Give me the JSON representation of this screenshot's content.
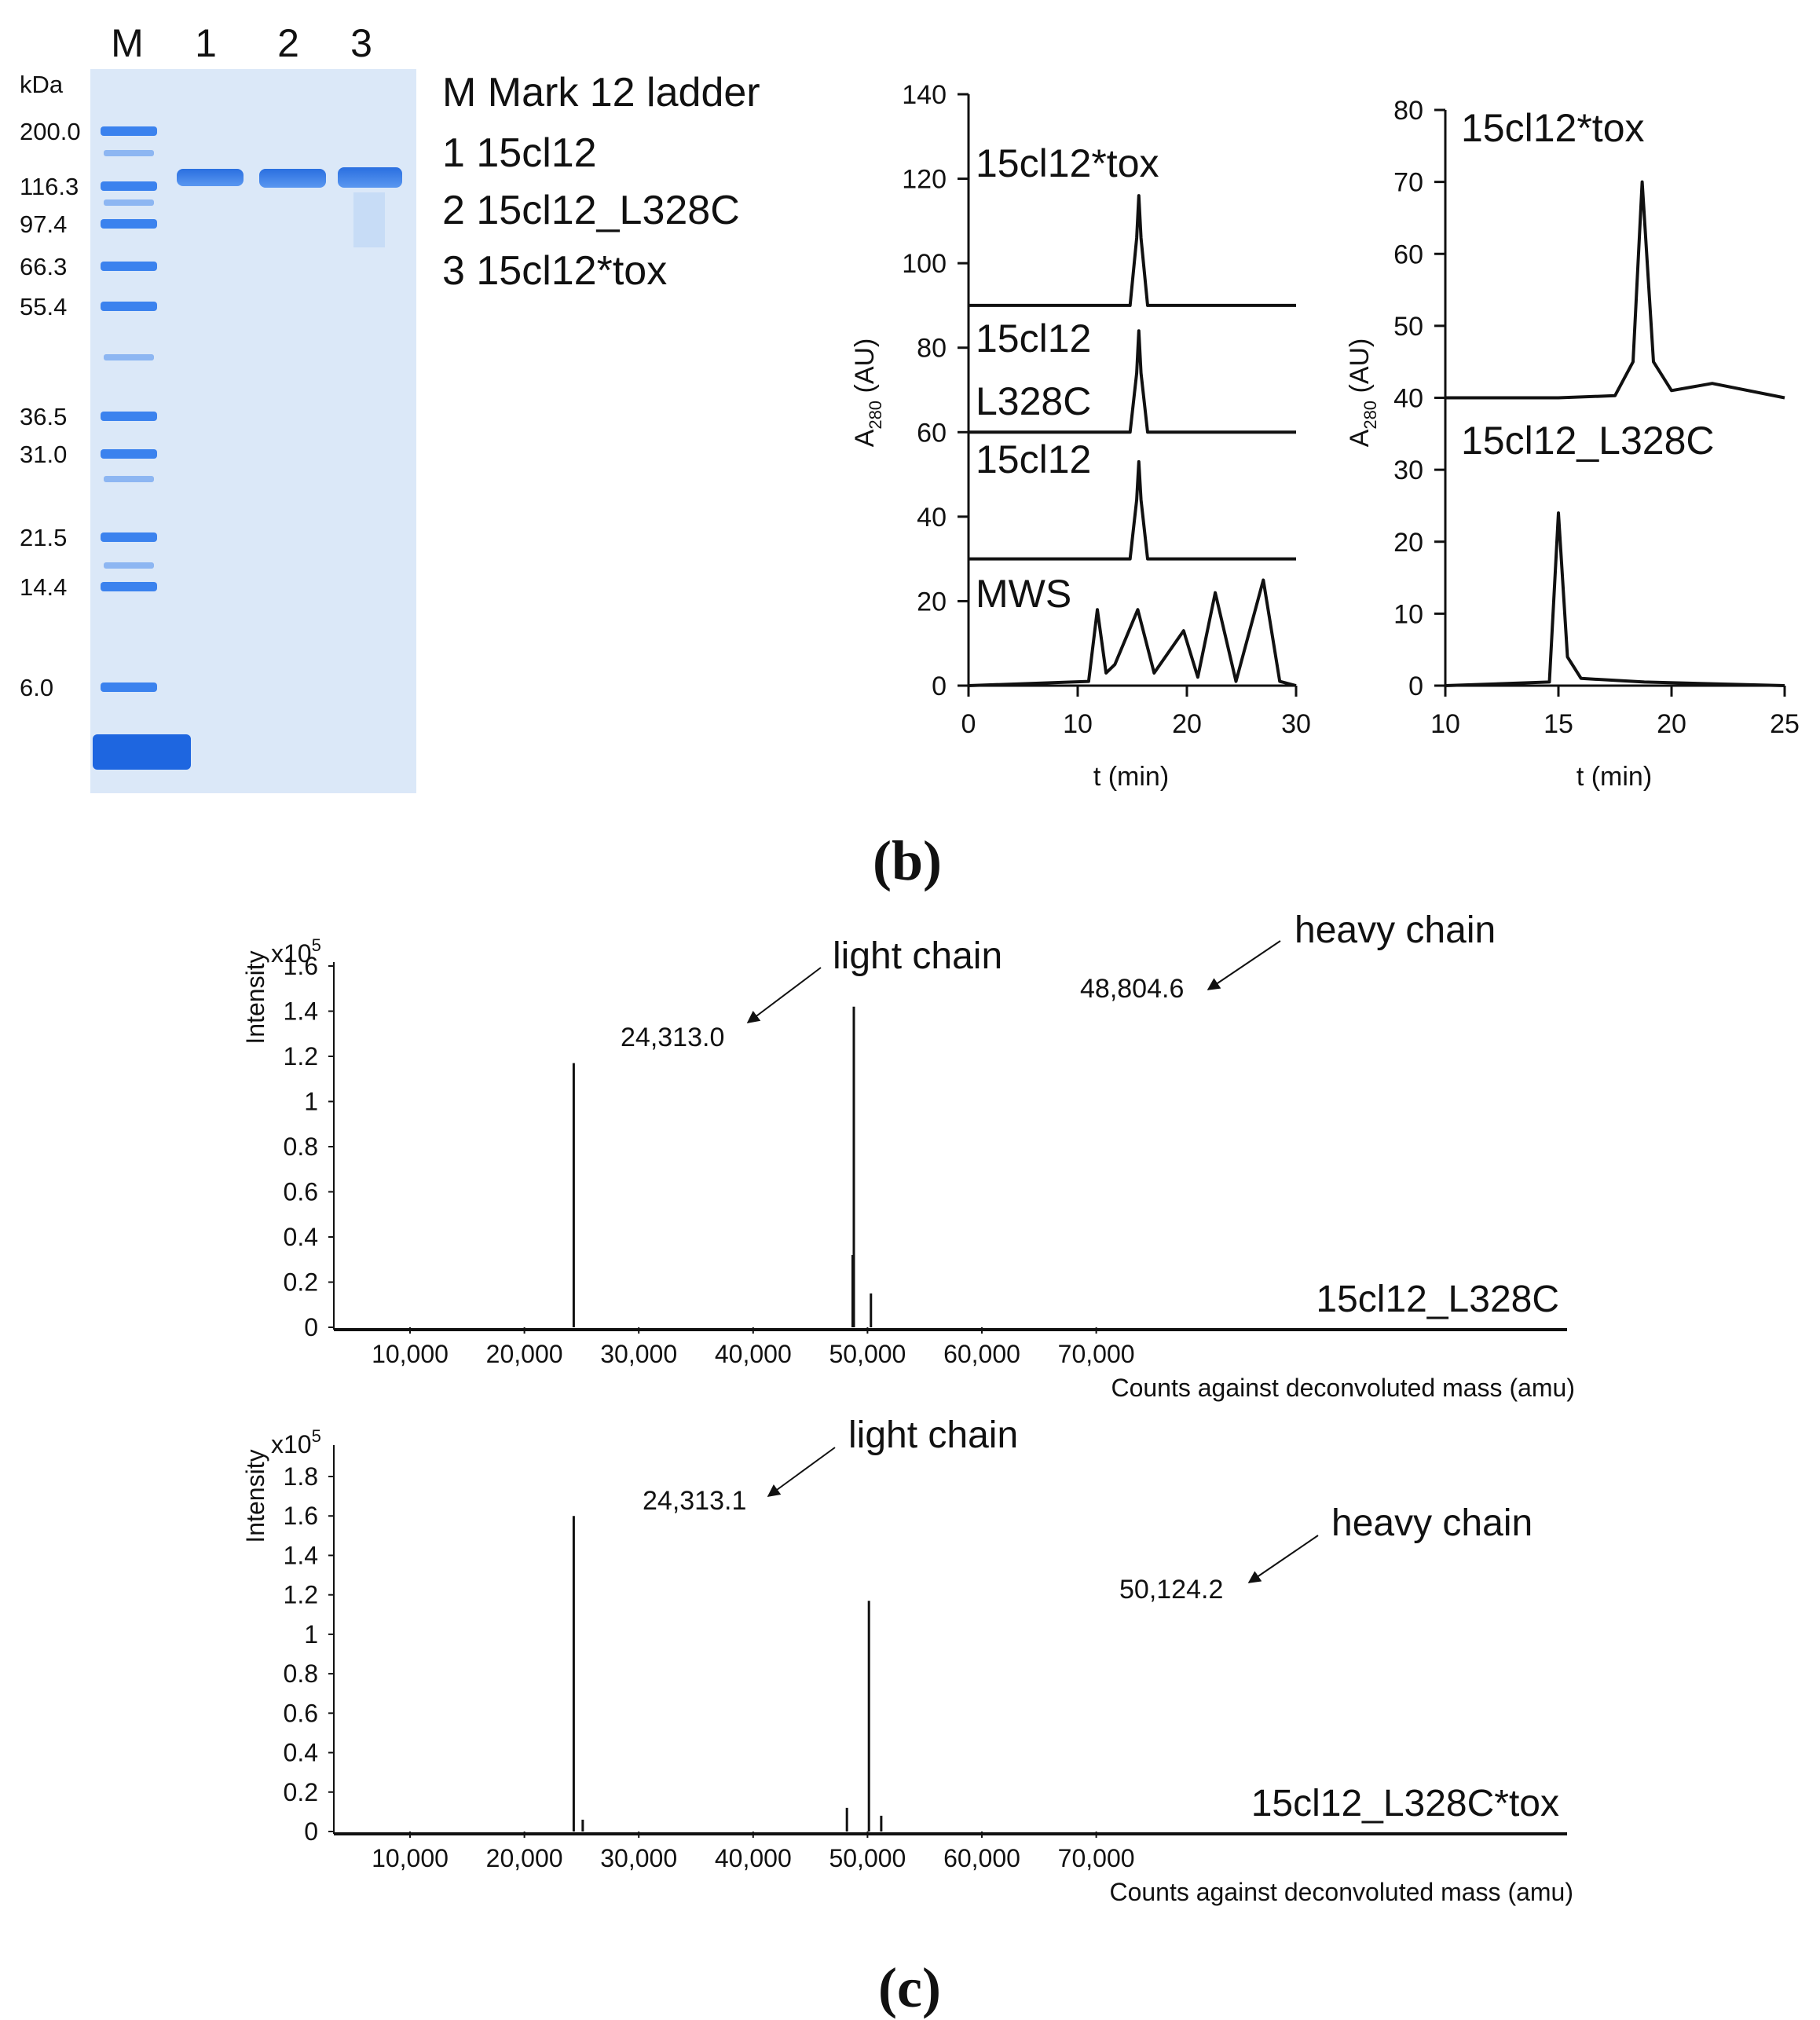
{
  "gel": {
    "lanes": [
      "M",
      "1",
      "2",
      "3"
    ],
    "unit": "kDa",
    "ladder": [
      "200.0",
      "116.3",
      "97.4",
      "66.3",
      "55.4",
      "36.5",
      "31.0",
      "21.5",
      "14.4",
      "6.0"
    ],
    "legend": [
      "M Mark 12 ladder",
      "1 15cl12",
      "2 15cl12_L328C",
      "3 15cl12*tox"
    ]
  },
  "panel_b_label": "(b)",
  "panel_c_label": "(c)",
  "sec_left": {
    "ylabel_main": "A",
    "ylabel_sub": "280",
    "ylabel_unit": " (AU)",
    "xlabel": "t (min)",
    "xticks": [
      "0",
      "10",
      "20",
      "30"
    ],
    "yticks": [
      "0",
      "20",
      "40",
      "60",
      "80",
      "100",
      "120",
      "140"
    ],
    "labels": [
      "15cl12*tox",
      "15cl12",
      "L328C",
      "15cl12",
      "MWS"
    ]
  },
  "sec_right": {
    "ylabel_main": "A",
    "ylabel_sub": "280",
    "ylabel_unit": " (AU)",
    "xlabel": "t (min)",
    "xticks": [
      "10",
      "15",
      "20",
      "25"
    ],
    "yticks": [
      "0",
      "10",
      "20",
      "30",
      "40",
      "50",
      "60",
      "70",
      "80"
    ],
    "labels": [
      "15cl12*tox",
      "15cl12_L328C"
    ]
  },
  "ms_top": {
    "ylabel": "Intensity",
    "scale_base": "x10",
    "scale_exp": "5",
    "yticks": [
      "0",
      "0.2",
      "0.4",
      "0.6",
      "0.8",
      "1",
      "1.2",
      "1.4",
      "1.6"
    ],
    "xticks": [
      "10,000",
      "20,000",
      "30,000",
      "40,000",
      "50,000",
      "60,000",
      "70,000"
    ],
    "xlabel": "Counts against deconvoluted mass (amu)",
    "sample": "15cl12_L328C",
    "light_label": "light chain",
    "heavy_label": "heavy chain",
    "light_mass": "24,313.0",
    "heavy_mass": "48,804.6"
  },
  "ms_bottom": {
    "ylabel": "Intensity",
    "scale_base": "x10",
    "scale_exp": "5",
    "yticks": [
      "0",
      "0.2",
      "0.4",
      "0.6",
      "0.8",
      "1",
      "1.2",
      "1.4",
      "1.6",
      "1.8"
    ],
    "xticks": [
      "10,000",
      "20,000",
      "30,000",
      "40,000",
      "50,000",
      "60,000",
      "70,000"
    ],
    "xlabel": "Counts against deconvoluted mass (amu)",
    "sample": "15cl12_L328C*tox",
    "light_label": "light chain",
    "heavy_label": "heavy chain",
    "light_mass": "24,313.1",
    "heavy_mass": "50,124.2"
  },
  "chart_data": [
    {
      "type": "line",
      "title": "",
      "xlabel": "t (min)",
      "ylabel": "A280 (AU)",
      "xlim": [
        0,
        30
      ],
      "ylim": [
        0,
        140
      ],
      "series": [
        {
          "name": "15cl12*tox",
          "x": [
            0,
            14.8,
            15.4,
            15.6,
            15.8,
            16.4,
            30
          ],
          "y": [
            90,
            90,
            106,
            116,
            106,
            90,
            90
          ]
        },
        {
          "name": "15cl12 L328C",
          "x": [
            0,
            14.8,
            15.4,
            15.6,
            15.8,
            16.4,
            30
          ],
          "y": [
            60,
            60,
            74,
            84,
            74,
            60,
            60
          ]
        },
        {
          "name": "15cl12",
          "x": [
            0,
            14.8,
            15.4,
            15.6,
            15.8,
            16.4,
            30
          ],
          "y": [
            30,
            30,
            44,
            53,
            44,
            30,
            30
          ]
        },
        {
          "name": "MWS",
          "x": [
            0,
            11,
            11.8,
            12.6,
            13.4,
            15.5,
            17,
            19.7,
            21,
            22.6,
            24.5,
            27,
            28.5,
            30
          ],
          "y": [
            0,
            1,
            18,
            3,
            5,
            18,
            3,
            13,
            2,
            22,
            1,
            25,
            1,
            0
          ]
        }
      ]
    },
    {
      "type": "line",
      "title": "",
      "xlabel": "t (min)",
      "ylabel": "A280 (AU)",
      "xlim": [
        10,
        25
      ],
      "ylim": [
        0,
        80
      ],
      "series": [
        {
          "name": "15cl12*tox",
          "x": [
            10,
            15,
            17.5,
            18.3,
            18.7,
            19.2,
            20,
            21.8,
            25
          ],
          "y": [
            40,
            40,
            40.3,
            45,
            70,
            45,
            41,
            42,
            40
          ]
        },
        {
          "name": "15cl12_L328C",
          "x": [
            10,
            14.6,
            15.0,
            15.4,
            16,
            18.8,
            25
          ],
          "y": [
            0,
            0.5,
            24,
            4,
            1,
            0.5,
            0
          ]
        }
      ]
    },
    {
      "type": "bar",
      "title": "",
      "xlabel": "Counts against deconvoluted mass (amu)",
      "ylabel": "Intensity (x10^5)",
      "ylim": [
        0,
        1.6
      ],
      "x": [
        24313.0,
        48804.6,
        48700,
        50300
      ],
      "values": [
        1.17,
        1.42,
        0.32,
        0.15
      ]
    },
    {
      "type": "bar",
      "title": "",
      "xlabel": "Counts against deconvoluted mass (amu)",
      "ylabel": "Intensity (x10^5)",
      "ylim": [
        0,
        1.8
      ],
      "x": [
        24313.1,
        25100,
        48200,
        50124.2,
        51200
      ],
      "values": [
        1.6,
        0.06,
        0.12,
        1.17,
        0.08
      ]
    }
  ]
}
